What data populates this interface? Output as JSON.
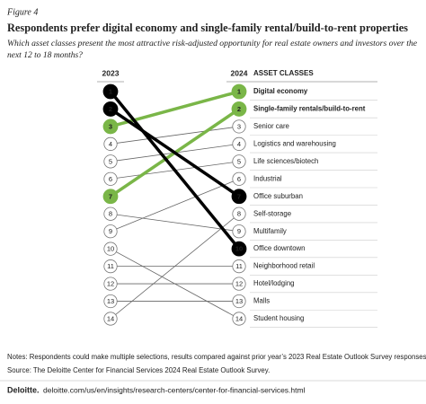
{
  "chart_data": {
    "type": "slope",
    "figure_label": "Figure 4",
    "title": "Respondents prefer digital economy and single-family rental/build-to-rent properties",
    "subtitle_lines": [
      "Which asset classes present the most attractive risk-adjusted opportunity for real estate owners and investors over the",
      "next 12 to 18 months?"
    ],
    "x": [
      "2023",
      "2024"
    ],
    "label_header": "ASSET CLASSES",
    "ylim": [
      1,
      14
    ],
    "y_inverted": true,
    "series": [
      {
        "name": "Digital economy",
        "color": "#7ab648",
        "emphasis": true,
        "values": [
          3,
          1
        ]
      },
      {
        "name": "Single-family rentals/build-to-rent",
        "color": "#7ab648",
        "emphasis": true,
        "values": [
          7,
          2
        ]
      },
      {
        "name": "Senior care",
        "color": "#666666",
        "values": [
          4,
          3
        ]
      },
      {
        "name": "Logistics and warehousing",
        "color": "#666666",
        "values": [
          5,
          4
        ]
      },
      {
        "name": "Life sciences/biotech",
        "color": "#666666",
        "values": [
          6,
          5
        ]
      },
      {
        "name": "Industrial",
        "color": "#666666",
        "values": [
          9,
          6
        ]
      },
      {
        "name": "Office suburban",
        "color": "#000000",
        "values": [
          2,
          7
        ]
      },
      {
        "name": "Self-storage",
        "color": "#666666",
        "values": [
          14,
          8
        ]
      },
      {
        "name": "Multifamily",
        "color": "#666666",
        "values": [
          8,
          9
        ]
      },
      {
        "name": "Office downtown",
        "color": "#000000",
        "values": [
          1,
          10
        ]
      },
      {
        "name": "Neighborhood retail",
        "color": "#666666",
        "values": [
          11,
          11
        ]
      },
      {
        "name": "Hotel/lodging",
        "color": "#666666",
        "values": [
          12,
          12
        ]
      },
      {
        "name": "Malls",
        "color": "#666666",
        "values": [
          13,
          13
        ]
      },
      {
        "name": "Student housing",
        "color": "#666666",
        "values": [
          10,
          14
        ]
      }
    ],
    "notes": "Notes: Respondents could make multiple selections, results compared against prior year’s 2023 Real Estate Outlook Survey responses.",
    "source": "Source: The Deloitte Center for Financial Services 2024 Real Estate Outlook Survey.",
    "footer_brand": "Deloitte.",
    "footer_url": "deloitte.com/us/en/insights/research-centers/center-for-financial-services.html"
  }
}
